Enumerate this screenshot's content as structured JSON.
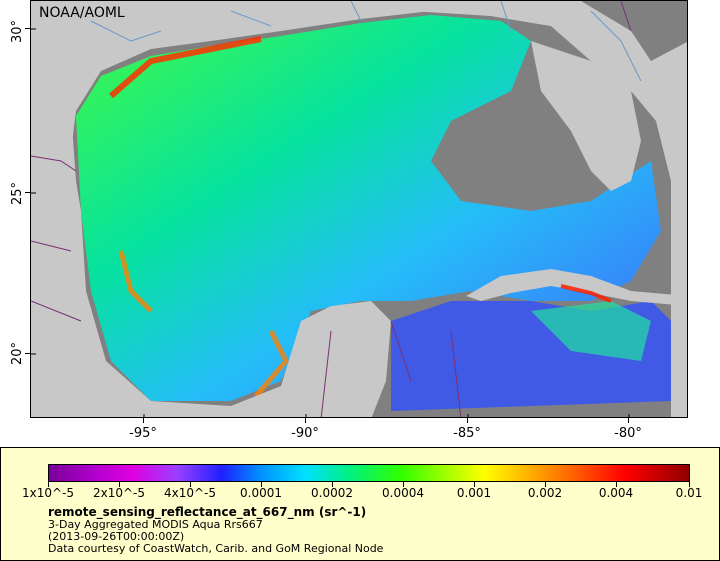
{
  "map": {
    "agency": "NOAA/AOML",
    "lat_labels": [
      "30°",
      "25°",
      "20°"
    ],
    "lon_labels": [
      "-95°",
      "-90°",
      "-85°",
      "-80°"
    ]
  },
  "legend": {
    "scale_labels": [
      "1x10^-5",
      "2x10^-5",
      "4x10^-5",
      "0.0001",
      "0.0002",
      "0.0004",
      "0.001",
      "0.002",
      "0.004",
      "0.01"
    ],
    "variable": "remote_sensing_reflectance_at_667_nm (sr^-1)",
    "product": "3-Day Aggregated MODIS Aqua Rrs667",
    "date": "(2013-09-26T00:00:00Z)",
    "credit": "Data courtesy of CoastWatch, Carib. and GoM Regional Node"
  },
  "colors": {
    "land": "#c8c8c8",
    "nodata": "#808080",
    "legend_bg": "#ffffcc"
  }
}
